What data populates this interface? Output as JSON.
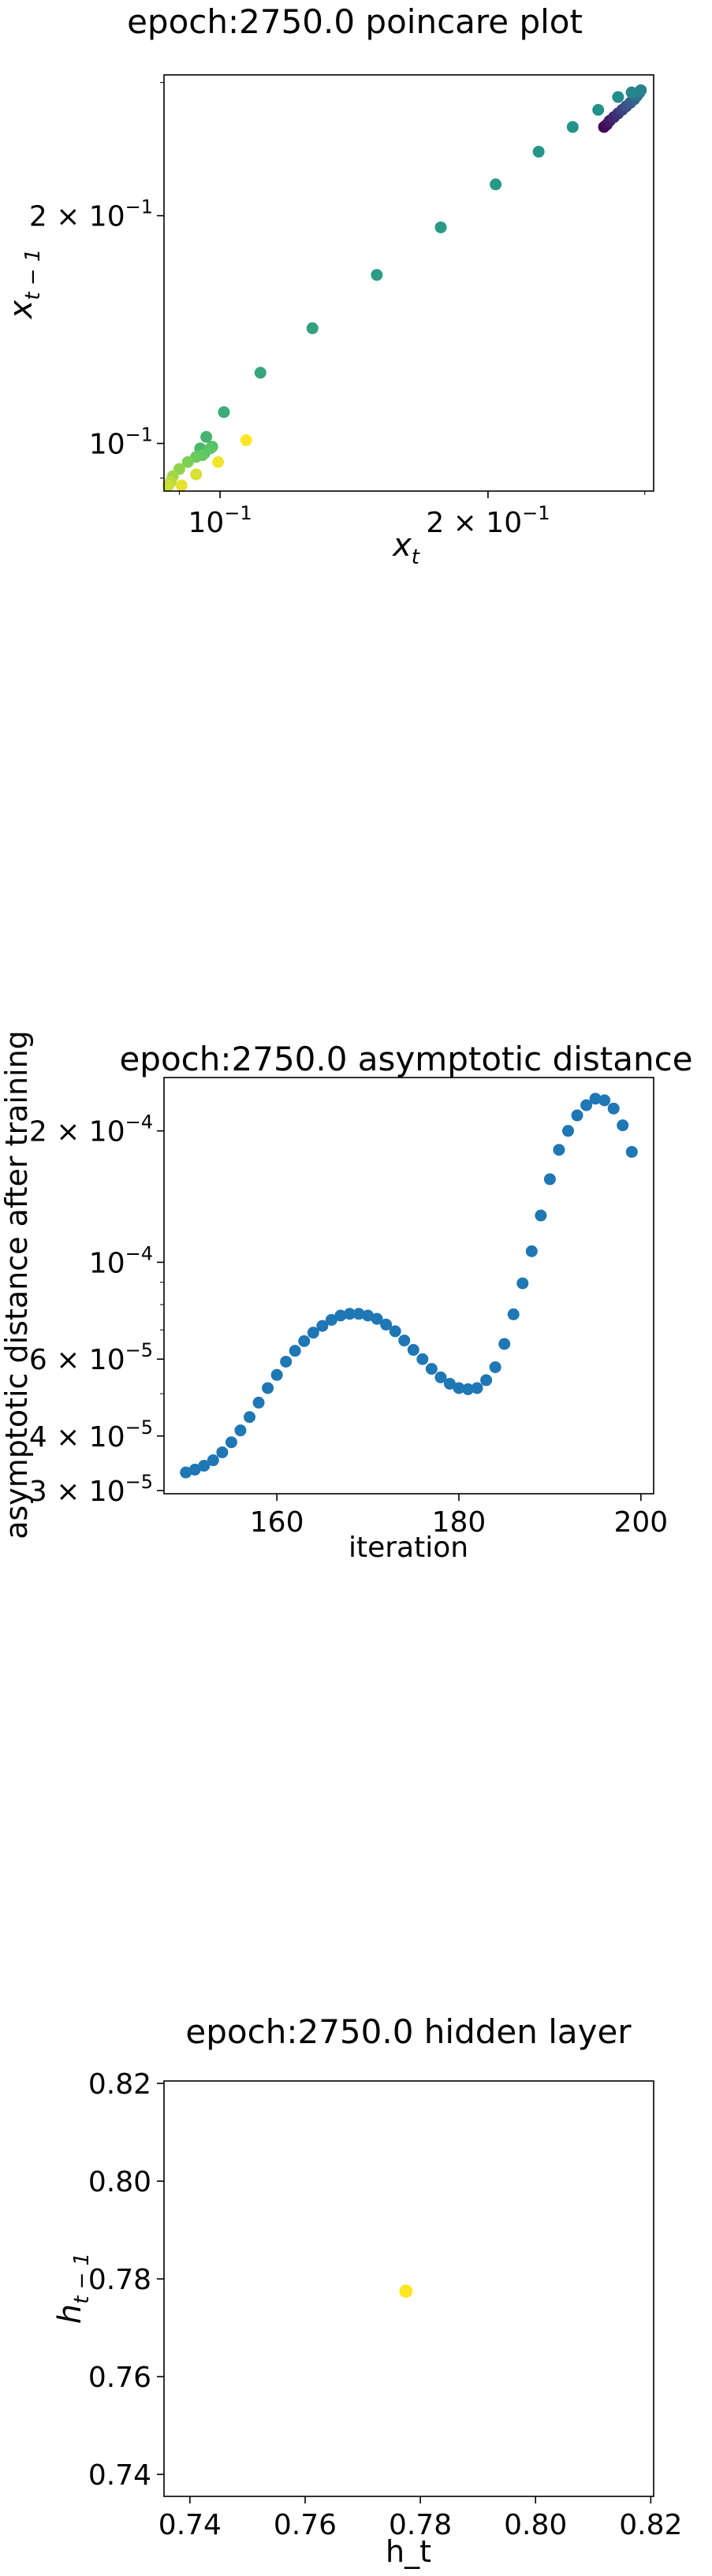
{
  "chart_data": [
    {
      "type": "scatter",
      "title": "epoch:2750.0 poincare plot",
      "xlabel": "x_t",
      "ylabel": "x_{t−1}",
      "xscale": "log",
      "yscale": "log",
      "xlim": [
        0.0865,
        0.307
      ],
      "ylim": [
        0.0865,
        0.307
      ],
      "xticks": [
        {
          "value": 0.1,
          "mant": "10",
          "exp": "−1"
        },
        {
          "value": 0.2,
          "mant": "2 × 10",
          "exp": "−1"
        }
      ],
      "yticks": [
        {
          "value": 0.1,
          "mant": "10",
          "exp": "−1"
        },
        {
          "value": 0.2,
          "mant": "2 × 10",
          "exp": "−1"
        }
      ],
      "colormap": [
        "#440154",
        "#3b528b",
        "#21918c",
        "#5ec962",
        "#fde725"
      ],
      "points": [
        {
          "x": 0.27,
          "y": 0.262,
          "c": 0.0
        },
        {
          "x": 0.272,
          "y": 0.264,
          "c": 0.04
        },
        {
          "x": 0.274,
          "y": 0.267,
          "c": 0.08
        },
        {
          "x": 0.277,
          "y": 0.27,
          "c": 0.12
        },
        {
          "x": 0.28,
          "y": 0.273,
          "c": 0.16
        },
        {
          "x": 0.283,
          "y": 0.276,
          "c": 0.2
        },
        {
          "x": 0.286,
          "y": 0.279,
          "c": 0.24
        },
        {
          "x": 0.289,
          "y": 0.282,
          "c": 0.28
        },
        {
          "x": 0.292,
          "y": 0.285,
          "c": 0.32
        },
        {
          "x": 0.294,
          "y": 0.288,
          "c": 0.36
        },
        {
          "x": 0.296,
          "y": 0.291,
          "c": 0.4
        },
        {
          "x": 0.297,
          "y": 0.293,
          "c": 0.44
        },
        {
          "x": 0.29,
          "y": 0.291,
          "c": 0.46
        },
        {
          "x": 0.28,
          "y": 0.287,
          "c": 0.48
        },
        {
          "x": 0.266,
          "y": 0.276,
          "c": 0.5
        },
        {
          "x": 0.249,
          "y": 0.262,
          "c": 0.51
        },
        {
          "x": 0.228,
          "y": 0.243,
          "c": 0.52
        },
        {
          "x": 0.204,
          "y": 0.22,
          "c": 0.53
        },
        {
          "x": 0.177,
          "y": 0.193,
          "c": 0.54
        },
        {
          "x": 0.15,
          "y": 0.167,
          "c": 0.55
        },
        {
          "x": 0.127,
          "y": 0.142,
          "c": 0.57
        },
        {
          "x": 0.111,
          "y": 0.124,
          "c": 0.59
        },
        {
          "x": 0.101,
          "y": 0.11,
          "c": 0.62
        },
        {
          "x": 0.0965,
          "y": 0.102,
          "c": 0.65
        },
        {
          "x": 0.095,
          "y": 0.0985,
          "c": 0.67
        },
        {
          "x": 0.096,
          "y": 0.097,
          "c": 0.69
        },
        {
          "x": 0.098,
          "y": 0.099,
          "c": 0.71
        },
        {
          "x": 0.0975,
          "y": 0.0985,
          "c": 0.73
        },
        {
          "x": 0.0955,
          "y": 0.0965,
          "c": 0.75
        },
        {
          "x": 0.094,
          "y": 0.096,
          "c": 0.77
        },
        {
          "x": 0.092,
          "y": 0.0945,
          "c": 0.8
        },
        {
          "x": 0.09,
          "y": 0.0925,
          "c": 0.83
        },
        {
          "x": 0.0885,
          "y": 0.0905,
          "c": 0.86
        },
        {
          "x": 0.088,
          "y": 0.089,
          "c": 0.89
        },
        {
          "x": 0.0875,
          "y": 0.088,
          "c": 0.92
        },
        {
          "x": 0.094,
          "y": 0.091,
          "c": 0.94
        },
        {
          "x": 0.0905,
          "y": 0.088,
          "c": 0.96
        },
        {
          "x": 0.0995,
          "y": 0.0945,
          "c": 0.98
        },
        {
          "x": 0.107,
          "y": 0.101,
          "c": 1.0
        }
      ]
    },
    {
      "type": "scatter",
      "title": "epoch:2750.0 asymptotic distance",
      "xlabel": "iteration",
      "ylabel": "asymptotic distance after training",
      "yscale": "log",
      "xlim": [
        147.6,
        201.4
      ],
      "ylim": [
        2.95e-05,
        0.000265
      ],
      "xticks": [
        160,
        180,
        200
      ],
      "yticks": [
        {
          "value": 3e-05,
          "mant": "3 × 10",
          "exp": "−5"
        },
        {
          "value": 4e-05,
          "mant": "4 × 10",
          "exp": "−5"
        },
        {
          "value": 6e-05,
          "mant": "6 × 10",
          "exp": "−5"
        },
        {
          "value": 0.0001,
          "mant": "10",
          "exp": "−4"
        },
        {
          "value": 0.0002,
          "mant": "2 × 10",
          "exp": "−4"
        }
      ],
      "color": "#1f77b4",
      "x": [
        150,
        151,
        152,
        153,
        154,
        155,
        156,
        157,
        158,
        159,
        160,
        161,
        162,
        163,
        164,
        165,
        166,
        167,
        168,
        169,
        170,
        171,
        172,
        173,
        174,
        175,
        176,
        177,
        178,
        179,
        180,
        181,
        182,
        183,
        184,
        185,
        186,
        187,
        188,
        189,
        190,
        191,
        192,
        193,
        194,
        195,
        196,
        197,
        198,
        199
      ],
      "y": [
        3.3e-05,
        3.35e-05,
        3.42e-05,
        3.52e-05,
        3.67e-05,
        3.87e-05,
        4.12e-05,
        4.42e-05,
        4.77e-05,
        5.15e-05,
        5.52e-05,
        5.92e-05,
        6.27e-05,
        6.6e-05,
        6.9e-05,
        7.15e-05,
        7.38e-05,
        7.55e-05,
        7.62e-05,
        7.62e-05,
        7.55e-05,
        7.42e-05,
        7.2e-05,
        6.95e-05,
        6.62e-05,
        6.3e-05,
        6e-05,
        5.7e-05,
        5.45e-05,
        5.27e-05,
        5.15e-05,
        5.12e-05,
        5.15e-05,
        5.37e-05,
        5.75e-05,
        6.5e-05,
        7.6e-05,
        8.95e-05,
        0.000106,
        0.000128,
        0.000155,
        0.000181,
        0.0002,
        0.000217,
        0.000229,
        0.000237,
        0.000235,
        0.000225,
        0.000206,
        0.000179
      ]
    },
    {
      "type": "scatter",
      "title": "epoch:2750.0 hidden layer",
      "xlabel": "h_t",
      "ylabel": "h_{t−1}",
      "xlim": [
        0.7355,
        0.8205
      ],
      "ylim": [
        0.7355,
        0.8205
      ],
      "xticks": [
        "0.74",
        "0.76",
        "0.78",
        "0.80",
        "0.82"
      ],
      "yticks": [
        "0.74",
        "0.76",
        "0.78",
        "0.80",
        "0.82"
      ],
      "color": "#fde725",
      "points": [
        {
          "x": 0.7775,
          "y": 0.7775
        }
      ]
    }
  ]
}
